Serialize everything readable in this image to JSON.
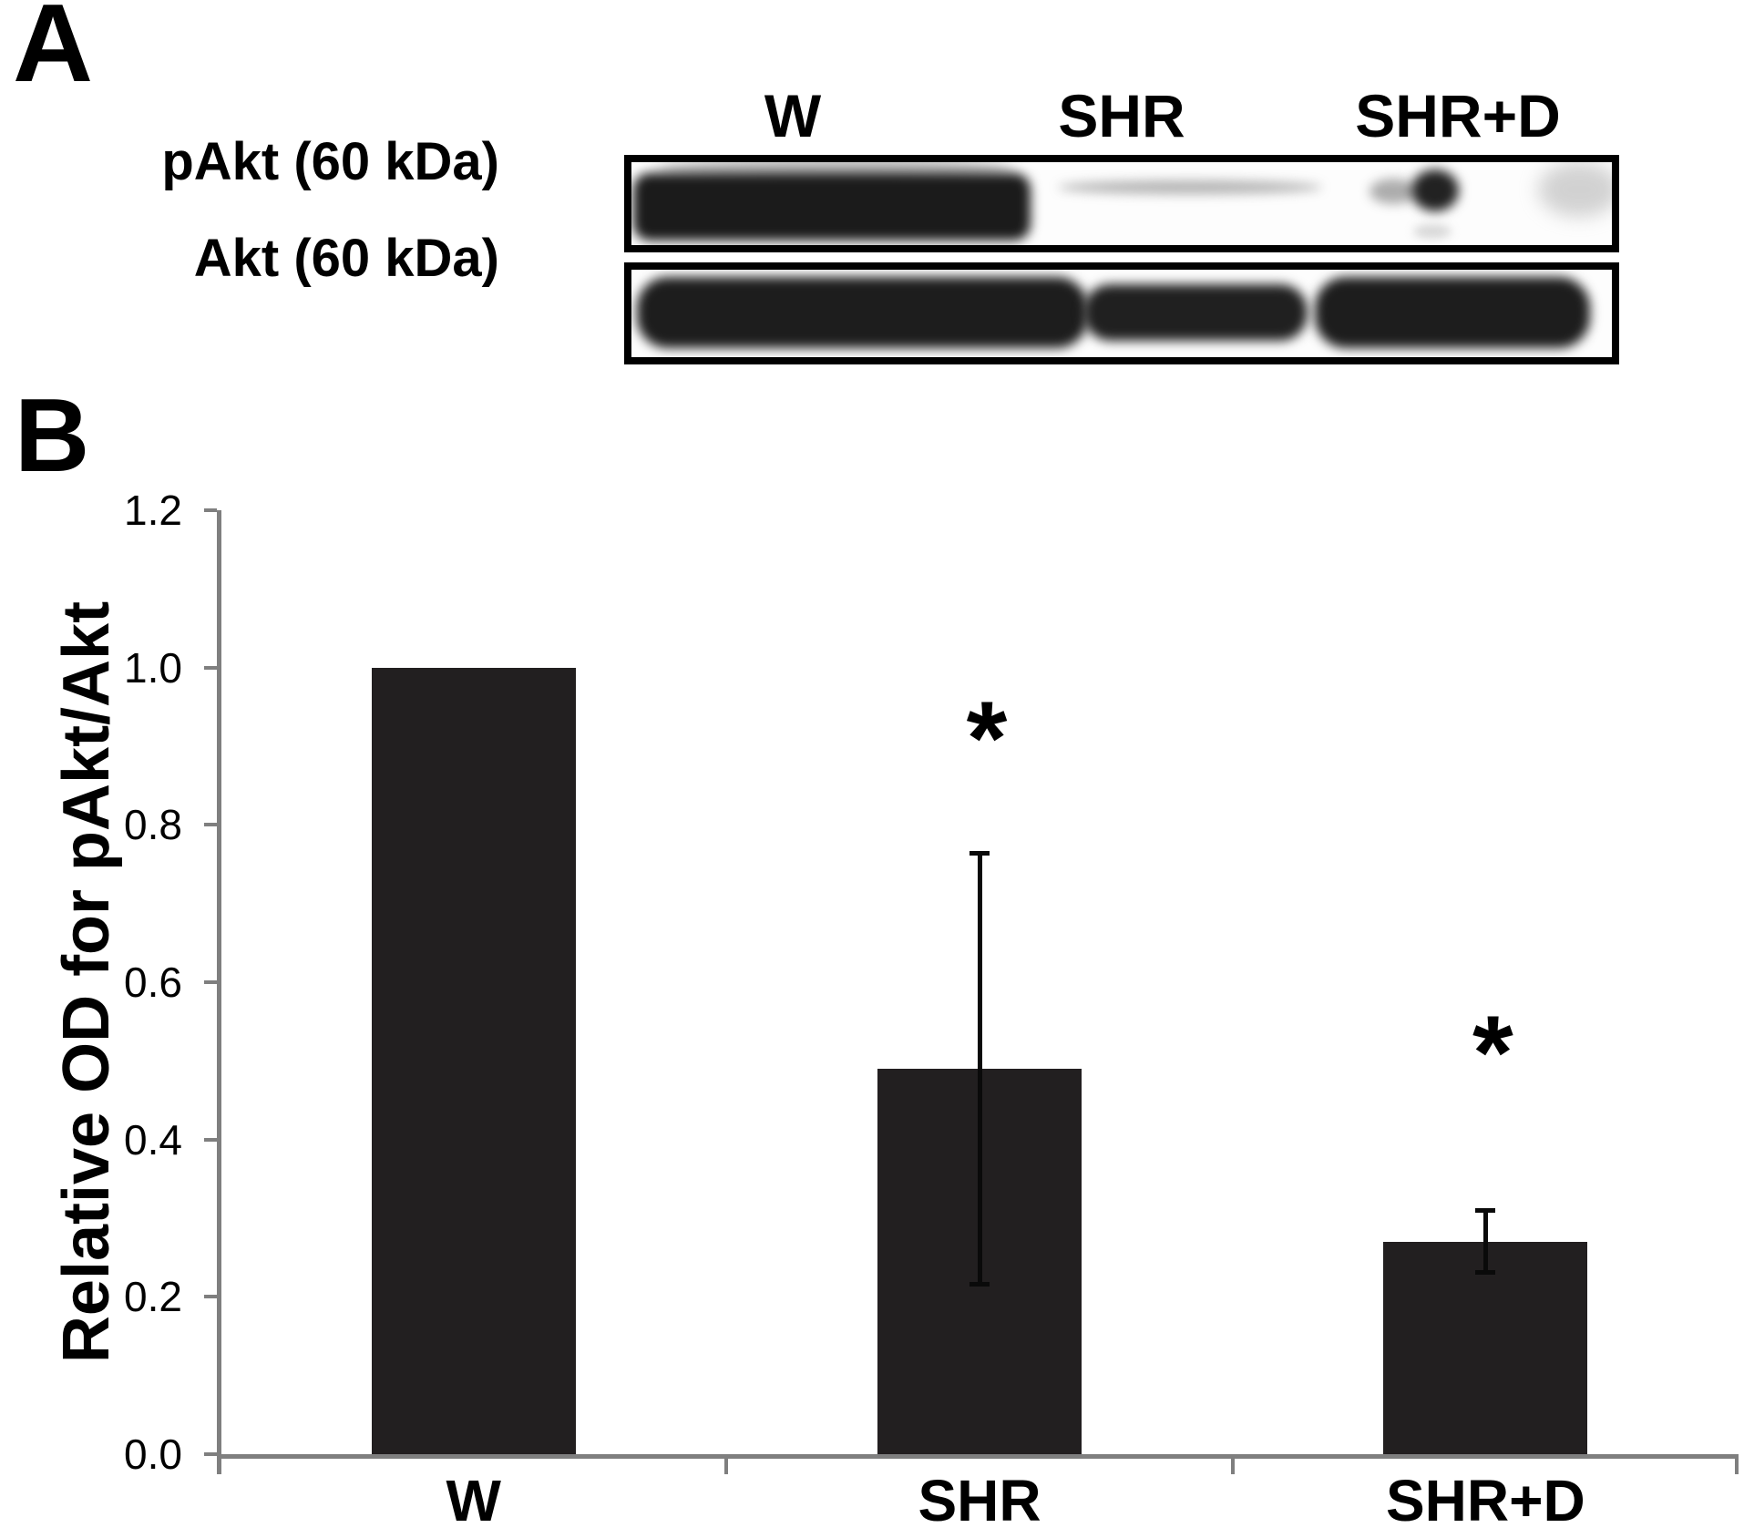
{
  "figure": {
    "panel_a": {
      "label": "A",
      "lane_labels": [
        "W",
        "SHR",
        "SHR+D"
      ],
      "row_labels": [
        "pAkt (60 kDa)",
        "Akt (60 kDa)"
      ]
    },
    "panel_b": {
      "label": "B"
    }
  },
  "chart_data": {
    "type": "bar",
    "categories": [
      "W",
      "SHR",
      "SHR+D"
    ],
    "values": [
      1.0,
      0.49,
      0.27
    ],
    "errors": [
      0,
      0.275,
      0.04
    ],
    "annotations": [
      {
        "text": "*",
        "category": "SHR",
        "y": 0.93
      },
      {
        "text": "*",
        "category": "SHR+D",
        "y": 0.53
      }
    ],
    "title": "",
    "xlabel": "",
    "ylabel": "Relative OD for pAkt/Akt",
    "ylim": [
      0,
      1.2
    ],
    "yticks": [
      0,
      0.2,
      0.4,
      0.6,
      0.8,
      1.0,
      1.2
    ],
    "grid": false,
    "legend": false,
    "bar_color": "#221f20",
    "axis_color": "#7f7f7f",
    "error_color": "#0a0a0a",
    "text_color": "#000000"
  }
}
